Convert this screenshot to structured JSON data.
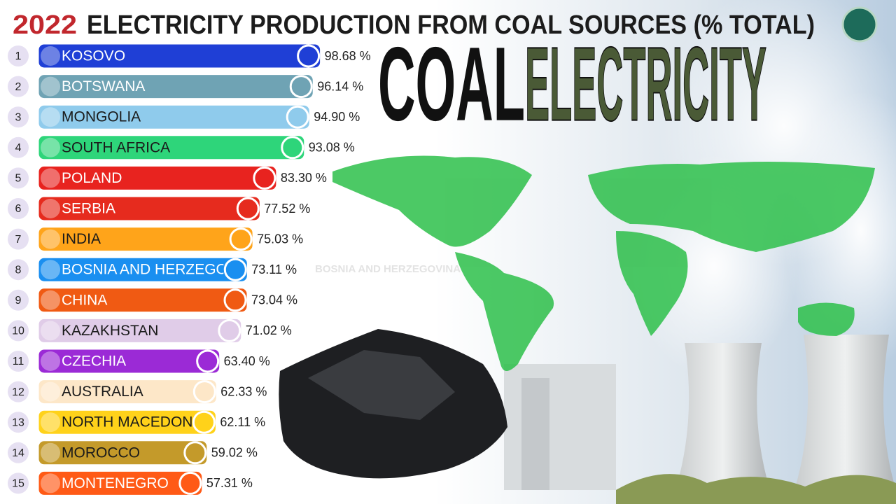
{
  "chart_data": {
    "type": "bar",
    "orientation": "horizontal",
    "year": "2022",
    "title": "ELECTRICITY PRODUCTION FROM COAL SOURCES (% TOTAL)",
    "overlay_title_1": "COAL",
    "overlay_title_2": "ELECTRICITY",
    "watermark": "BOSNIA AND HERZEGOVINA",
    "ranks": [
      1,
      2,
      3,
      4,
      5,
      6,
      7,
      8,
      9,
      10,
      11,
      12,
      13,
      14,
      15
    ],
    "categories": [
      "KOSOVO",
      "BOTSWANA",
      "MONGOLIA",
      "SOUTH AFRICA",
      "POLAND",
      "SERBIA",
      "INDIA",
      "BOSNIA AND HERZEGOVINA",
      "CHINA",
      "KAZAKHSTAN",
      "CZECHIA",
      "AUSTRALIA",
      "NORTH MACEDONIA",
      "MOROCCO",
      "MONTENEGRO"
    ],
    "values": [
      98.68,
      96.14,
      94.9,
      93.08,
      83.3,
      77.52,
      75.03,
      73.11,
      73.04,
      71.02,
      63.4,
      62.33,
      62.11,
      59.02,
      57.31
    ],
    "value_labels": [
      "98.68 %",
      "96.14 %",
      "94.90 %",
      "93.08 %",
      "83.30 %",
      "77.52 %",
      "75.03 %",
      "73.11 %",
      "73.04 %",
      "71.02 %",
      "63.40 %",
      "62.33 %",
      "62.11 %",
      "59.02 %",
      "57.31 %"
    ],
    "colors": [
      "#1f3fd6",
      "#6fa3b4",
      "#8fcbec",
      "#2ed57a",
      "#e8231f",
      "#e62b1e",
      "#ffa41a",
      "#1a8ff0",
      "#f05a13",
      "#e0cce8",
      "#9b2ad6",
      "#fde7c8",
      "#ffd21a",
      "#c49a2a",
      "#ff5a16"
    ]
  }
}
